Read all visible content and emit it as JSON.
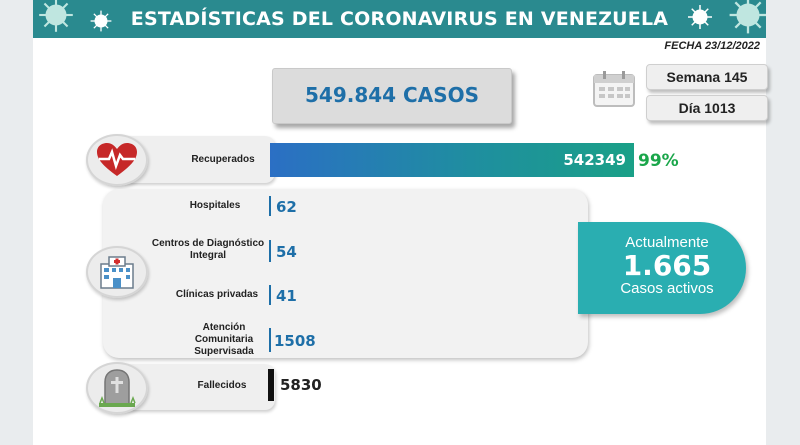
{
  "header": {
    "title": "ESTADÍSTICAS DEL CORONAVIRUS EN VENEZUELA",
    "date": "FECHA 23/12/2022"
  },
  "summary": {
    "total_cases": "549.844 CASOS",
    "week": "Semana 145",
    "day": "Día 1013"
  },
  "recovered": {
    "label": "Recuperados",
    "value": "542349",
    "percent": "99%",
    "icon": "heart-pulse-icon"
  },
  "active_breakdown": {
    "icon": "hospital-building-icon",
    "rows": [
      {
        "label": "Hospitales",
        "value": "62"
      },
      {
        "label": "Centros de Diagnóstico Integral",
        "value": "54"
      },
      {
        "label": "Clínicas privadas",
        "value": "41"
      },
      {
        "label": "Atención Comunitaria Supervisada",
        "value": "1508"
      }
    ]
  },
  "active": {
    "top": "Actualmente",
    "value": "1.665",
    "bottom": "Casos activos"
  },
  "deaths": {
    "label": "Fallecidos",
    "value": "5830",
    "icon": "gravestone-icon"
  },
  "colors": {
    "banner": "#2a8a8f",
    "accent_blue": "#1e6fa8",
    "accent_green": "#1aa64a",
    "active_teal": "#2aaeb1"
  }
}
